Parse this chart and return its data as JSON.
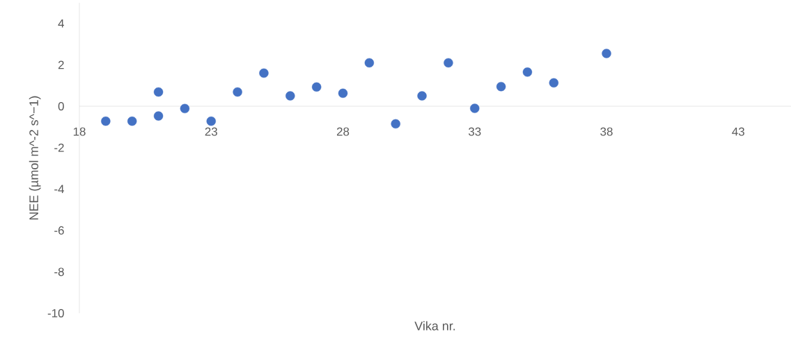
{
  "chart_data": {
    "type": "scatter",
    "xlabel": "Vika nr.",
    "ylabel": "NEE (µmol m^-2 s^−1)",
    "x": [
      19,
      20,
      21,
      21,
      22,
      23,
      24,
      25,
      26,
      27,
      28,
      29,
      30,
      31,
      32,
      33,
      34,
      35,
      36,
      38
    ],
    "values": [
      -0.72,
      -0.72,
      0.69,
      -0.47,
      -0.11,
      -0.72,
      0.69,
      1.6,
      0.5,
      0.93,
      0.63,
      2.1,
      -0.85,
      0.5,
      2.1,
      -0.1,
      0.95,
      1.65,
      1.13,
      2.55
    ],
    "color": "#4472c4",
    "marker": "circle",
    "xlim": [
      18,
      45
    ],
    "ylim": [
      -10,
      5
    ],
    "xticks": [
      18,
      23,
      28,
      33,
      38,
      43
    ],
    "yticks": [
      -10,
      -8,
      -6,
      -4,
      -2,
      0,
      2,
      4
    ],
    "grid": false
  }
}
